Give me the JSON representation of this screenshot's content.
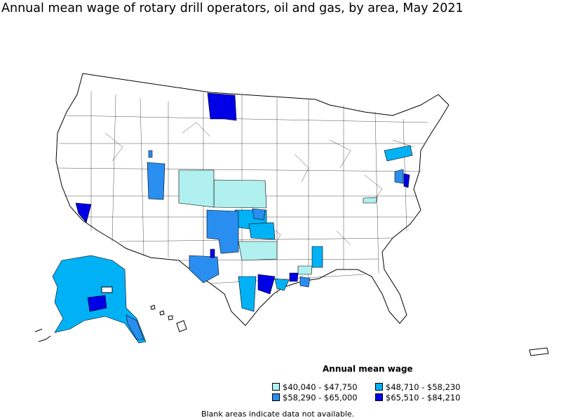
{
  "title": "Annual mean wage of rotary drill operators, oil and gas, by area, May 2021",
  "legend": {
    "title": "Annual mean wage",
    "items": [
      {
        "label": "$40,040 - $47,750",
        "color": "#b0f0ee"
      },
      {
        "label": "$48,710 - $58,230",
        "color": "#00b2f5"
      },
      {
        "label": "$58,290 - $65,000",
        "color": "#2a8ef0"
      },
      {
        "label": "$65,510 - $84,210",
        "color": "#0000e6"
      }
    ]
  },
  "footnote": "Blank areas indicate data not available."
}
